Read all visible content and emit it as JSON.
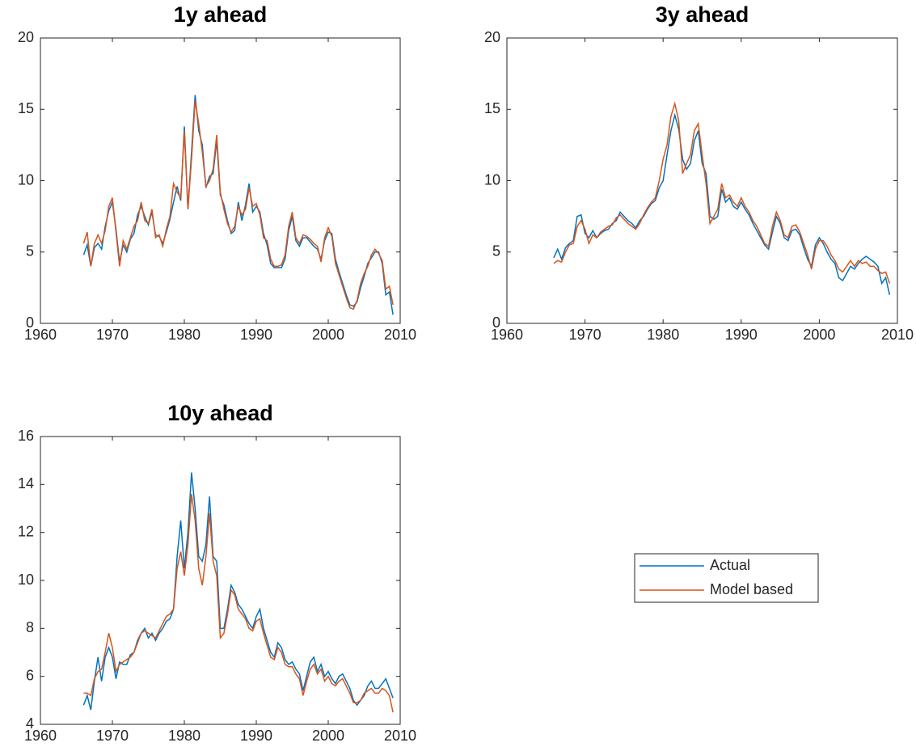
{
  "chart_data": [
    {
      "type": "line",
      "title": "1y ahead",
      "x": [
        1966,
        1966.5,
        1967,
        1967.5,
        1968,
        1968.5,
        1969,
        1969.5,
        1970,
        1970.5,
        1971,
        1971.5,
        1972,
        1972.5,
        1973,
        1973.5,
        1974,
        1974.5,
        1975,
        1975.5,
        1976,
        1976.5,
        1977,
        1977.5,
        1978,
        1978.5,
        1979,
        1979.5,
        1980,
        1980.5,
        1981,
        1981.5,
        1982,
        1982.5,
        1983,
        1983.5,
        1984,
        1984.5,
        1985,
        1985.5,
        1986,
        1986.5,
        1987,
        1987.5,
        1988,
        1988.5,
        1989,
        1989.5,
        1990,
        1990.5,
        1991,
        1991.5,
        1992,
        1992.5,
        1993,
        1993.5,
        1994,
        1994.5,
        1995,
        1995.5,
        1996,
        1996.5,
        1997,
        1997.5,
        1998,
        1998.5,
        1999,
        1999.5,
        2000,
        2000.5,
        2001,
        2001.5,
        2002,
        2002.5,
        2003,
        2003.5,
        2004,
        2004.5,
        2005,
        2005.5,
        2006,
        2006.5,
        2007,
        2007.5,
        2008,
        2008.5,
        2009
      ],
      "series": [
        {
          "name": "Actual",
          "color": "#0072bd",
          "values": [
            4.8,
            5.5,
            4.0,
            5.3,
            5.6,
            5.2,
            6.8,
            7.9,
            8.5,
            6.6,
            4.3,
            5.5,
            5.0,
            5.9,
            6.3,
            7.6,
            8.2,
            7.5,
            6.9,
            7.8,
            6.2,
            6.1,
            5.6,
            6.4,
            7.3,
            8.5,
            9.6,
            8.6,
            13.8,
            8.0,
            12.0,
            16.0,
            13.5,
            12.5,
            9.5,
            10.3,
            10.5,
            12.8,
            9.0,
            8.3,
            7.2,
            6.3,
            6.5,
            8.5,
            7.2,
            8.3,
            9.8,
            7.8,
            8.2,
            7.8,
            6.3,
            5.5,
            4.2,
            3.9,
            3.9,
            3.9,
            4.5,
            6.5,
            7.5,
            5.8,
            5.4,
            6.0,
            6.0,
            5.7,
            5.4,
            5.2,
            4.5,
            5.8,
            6.4,
            6.3,
            4.5,
            3.6,
            2.8,
            2.0,
            1.3,
            1.2,
            1.5,
            2.5,
            3.3,
            4.2,
            4.6,
            5.0,
            5.0,
            4.2,
            2.0,
            2.2,
            0.6
          ]
        },
        {
          "name": "Model based",
          "color": "#d95319",
          "values": [
            5.6,
            6.4,
            4.0,
            5.6,
            6.2,
            5.6,
            6.5,
            8.2,
            8.8,
            6.4,
            4.0,
            5.8,
            5.2,
            6.0,
            6.8,
            7.2,
            8.5,
            7.2,
            7.0,
            8.0,
            6.0,
            6.2,
            5.4,
            6.6,
            7.5,
            9.8,
            9.2,
            8.8,
            13.5,
            8.0,
            11.5,
            15.6,
            14.0,
            12.0,
            9.6,
            10.0,
            10.8,
            13.2,
            9.2,
            8.0,
            7.0,
            6.4,
            6.8,
            8.2,
            7.6,
            8.0,
            9.5,
            8.2,
            8.4,
            7.6,
            6.0,
            5.8,
            4.5,
            4.0,
            4.0,
            4.1,
            4.8,
            6.8,
            7.8,
            6.0,
            5.6,
            6.2,
            6.1,
            5.9,
            5.6,
            5.4,
            4.3,
            6.0,
            6.7,
            6.1,
            4.2,
            3.4,
            2.6,
            1.8,
            1.1,
            1.0,
            1.6,
            2.8,
            3.5,
            4.0,
            4.8,
            5.2,
            4.9,
            4.4,
            2.4,
            2.6,
            1.3
          ]
        }
      ],
      "xlim": [
        1960,
        2010
      ],
      "xticks": [
        1960,
        1970,
        1980,
        1990,
        2000,
        2010
      ],
      "ylim": [
        0,
        20
      ],
      "yticks": [
        0,
        5,
        10,
        15,
        20
      ]
    },
    {
      "type": "line",
      "title": "3y ahead",
      "x": [
        1966,
        1966.5,
        1967,
        1967.5,
        1968,
        1968.5,
        1969,
        1969.5,
        1970,
        1970.5,
        1971,
        1971.5,
        1972,
        1972.5,
        1973,
        1973.5,
        1974,
        1974.5,
        1975,
        1975.5,
        1976,
        1976.5,
        1977,
        1977.5,
        1978,
        1978.5,
        1979,
        1979.5,
        1980,
        1980.5,
        1981,
        1981.5,
        1982,
        1982.5,
        1983,
        1983.5,
        1984,
        1984.5,
        1985,
        1985.5,
        1986,
        1986.5,
        1987,
        1987.5,
        1988,
        1988.5,
        1989,
        1989.5,
        1990,
        1990.5,
        1991,
        1991.5,
        1992,
        1992.5,
        1993,
        1993.5,
        1994,
        1994.5,
        1995,
        1995.5,
        1996,
        1996.5,
        1997,
        1997.5,
        1998,
        1998.5,
        1999,
        1999.5,
        2000,
        2000.5,
        2001,
        2001.5,
        2002,
        2002.5,
        2003,
        2003.5,
        2004,
        2004.5,
        2005,
        2005.5,
        2006,
        2006.5,
        2007,
        2007.5,
        2008,
        2008.5,
        2009
      ],
      "series": [
        {
          "name": "Actual",
          "color": "#0072bd",
          "values": [
            4.6,
            5.2,
            4.5,
            5.3,
            5.6,
            5.8,
            7.5,
            7.6,
            6.3,
            6.0,
            6.5,
            6.0,
            6.3,
            6.5,
            6.6,
            7.0,
            7.2,
            7.8,
            7.5,
            7.2,
            7.0,
            6.7,
            7.2,
            7.5,
            8.0,
            8.4,
            8.6,
            9.5,
            10.0,
            11.8,
            13.5,
            14.6,
            13.6,
            11.5,
            10.8,
            11.2,
            12.8,
            13.5,
            11.2,
            10.5,
            7.5,
            7.3,
            7.5,
            9.4,
            8.5,
            8.8,
            8.2,
            8.0,
            8.5,
            8.0,
            7.6,
            7.0,
            6.5,
            6.0,
            5.5,
            5.2,
            6.4,
            7.5,
            7.0,
            6.0,
            5.8,
            6.5,
            6.6,
            6.2,
            5.3,
            4.5,
            4.0,
            5.5,
            6.0,
            5.6,
            5.0,
            4.5,
            4.2,
            3.2,
            3.0,
            3.5,
            4.0,
            3.8,
            4.2,
            4.5,
            4.7,
            4.5,
            4.3,
            4.0,
            2.8,
            3.2,
            2.0
          ]
        },
        {
          "name": "Model based",
          "color": "#d95319",
          "values": [
            4.2,
            4.4,
            4.3,
            5.0,
            5.5,
            5.6,
            6.8,
            7.2,
            6.6,
            5.6,
            6.2,
            6.0,
            6.4,
            6.6,
            6.8,
            6.9,
            7.4,
            7.6,
            7.3,
            7.0,
            6.8,
            6.6,
            7.0,
            7.6,
            8.1,
            8.5,
            8.8,
            10.0,
            11.5,
            12.5,
            14.5,
            15.4,
            14.2,
            10.5,
            11.2,
            11.8,
            13.5,
            14.0,
            11.8,
            9.8,
            7.0,
            7.5,
            8.0,
            9.8,
            8.8,
            9.0,
            8.5,
            8.2,
            8.8,
            8.2,
            7.8,
            7.2,
            6.8,
            6.2,
            5.6,
            5.4,
            6.8,
            7.8,
            7.2,
            6.2,
            6.0,
            6.8,
            6.9,
            6.4,
            5.6,
            4.8,
            3.8,
            5.2,
            5.8,
            5.8,
            5.4,
            4.8,
            4.4,
            3.8,
            3.6,
            4.0,
            4.4,
            4.0,
            4.4,
            4.2,
            4.3,
            4.0,
            4.0,
            3.7,
            3.5,
            3.6,
            2.8
          ]
        }
      ],
      "xlim": [
        1960,
        2010
      ],
      "xticks": [
        1960,
        1970,
        1980,
        1990,
        2000,
        2010
      ],
      "ylim": [
        0,
        20
      ],
      "yticks": [
        0,
        5,
        10,
        15,
        20
      ]
    },
    {
      "type": "line",
      "title": "10y ahead",
      "x": [
        1966,
        1966.5,
        1967,
        1967.5,
        1968,
        1968.5,
        1969,
        1969.5,
        1970,
        1970.5,
        1971,
        1971.5,
        1972,
        1972.5,
        1973,
        1973.5,
        1974,
        1974.5,
        1975,
        1975.5,
        1976,
        1976.5,
        1977,
        1977.5,
        1978,
        1978.5,
        1979,
        1979.5,
        1980,
        1980.5,
        1981,
        1981.5,
        1982,
        1982.5,
        1983,
        1983.5,
        1984,
        1984.5,
        1985,
        1985.5,
        1986,
        1986.5,
        1987,
        1987.5,
        1988,
        1988.5,
        1989,
        1989.5,
        1990,
        1990.5,
        1991,
        1991.5,
        1992,
        1992.5,
        1993,
        1993.5,
        1994,
        1994.5,
        1995,
        1995.5,
        1996,
        1996.5,
        1997,
        1997.5,
        1998,
        1998.5,
        1999,
        1999.5,
        2000,
        2000.5,
        2001,
        2001.5,
        2002,
        2002.5,
        2003,
        2003.5,
        2004,
        2004.5,
        2005,
        2005.5,
        2006,
        2006.5,
        2007,
        2007.5,
        2008,
        2008.5,
        2009
      ],
      "series": [
        {
          "name": "Actual",
          "color": "#0072bd",
          "values": [
            4.8,
            5.2,
            4.6,
            5.8,
            6.8,
            5.8,
            6.8,
            7.2,
            6.8,
            5.9,
            6.6,
            6.5,
            6.5,
            6.9,
            7.0,
            7.5,
            7.8,
            8.0,
            7.6,
            7.8,
            7.5,
            7.8,
            8.0,
            8.3,
            8.4,
            8.8,
            11.0,
            12.5,
            10.5,
            12.0,
            14.5,
            13.0,
            11.0,
            10.8,
            11.5,
            13.5,
            11.0,
            10.8,
            8.0,
            8.0,
            8.8,
            9.8,
            9.5,
            9.0,
            8.8,
            8.5,
            8.2,
            8.0,
            8.5,
            8.8,
            8.0,
            7.5,
            7.0,
            6.8,
            7.4,
            7.2,
            6.7,
            6.5,
            6.6,
            6.3,
            6.1,
            5.4,
            6.0,
            6.6,
            6.8,
            6.2,
            6.5,
            6.0,
            6.2,
            5.9,
            5.7,
            6.0,
            6.1,
            5.8,
            5.5,
            5.0,
            4.8,
            5.0,
            5.2,
            5.6,
            5.8,
            5.5,
            5.5,
            5.7,
            5.9,
            5.5,
            5.1
          ]
        },
        {
          "name": "Model based",
          "color": "#d95319",
          "values": [
            5.3,
            5.3,
            5.2,
            5.9,
            6.2,
            6.3,
            7.0,
            7.8,
            7.2,
            6.2,
            6.5,
            6.6,
            6.7,
            6.8,
            7.0,
            7.4,
            7.8,
            7.9,
            7.8,
            7.7,
            7.6,
            7.9,
            8.2,
            8.5,
            8.6,
            8.8,
            10.5,
            11.2,
            10.2,
            11.5,
            13.6,
            12.5,
            10.5,
            9.8,
            11.0,
            12.8,
            10.8,
            10.2,
            7.6,
            7.8,
            8.6,
            9.6,
            9.4,
            8.8,
            8.6,
            8.4,
            8.0,
            7.9,
            8.3,
            8.4,
            7.8,
            7.3,
            6.8,
            6.7,
            7.2,
            7.0,
            6.5,
            6.4,
            6.4,
            6.1,
            5.9,
            5.2,
            5.8,
            6.3,
            6.5,
            6.1,
            6.3,
            5.8,
            6.0,
            5.7,
            5.6,
            5.8,
            5.9,
            5.6,
            5.3,
            4.9,
            4.9,
            5.0,
            5.3,
            5.4,
            5.5,
            5.3,
            5.3,
            5.5,
            5.4,
            5.2,
            4.5
          ]
        }
      ],
      "xlim": [
        1960,
        2010
      ],
      "xticks": [
        1960,
        1970,
        1980,
        1990,
        2000,
        2010
      ],
      "ylim": [
        4,
        16
      ],
      "yticks": [
        4,
        6,
        8,
        10,
        12,
        14,
        16
      ],
      "legend": "outside-right"
    }
  ]
}
